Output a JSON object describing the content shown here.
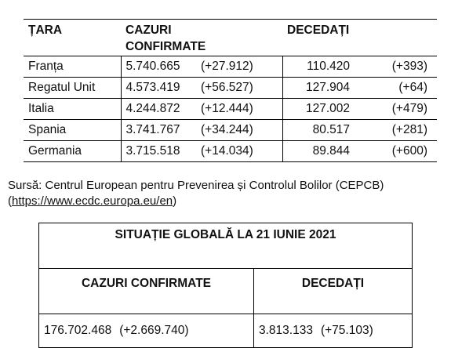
{
  "country_table": {
    "headers": {
      "country": "ȚARA",
      "confirmed_line1": "CAZURI",
      "confirmed_line2": "CONFIRMATE",
      "deaths": "DECEDAȚI"
    },
    "rows": [
      {
        "country": "Franța",
        "confirmed": "5.740.665",
        "confirmed_inc": "(+27.912)",
        "deaths": "110.420",
        "deaths_inc": "(+393)"
      },
      {
        "country": "Regatul Unit",
        "confirmed": "4.573.419",
        "confirmed_inc": "(+56.527)",
        "deaths": "127.904",
        "deaths_inc": "(+64)"
      },
      {
        "country": "Italia",
        "confirmed": "4.244.872",
        "confirmed_inc": "(+12.444)",
        "deaths": "127.002",
        "deaths_inc": "(+479)"
      },
      {
        "country": "Spania",
        "confirmed": "3.741.767",
        "confirmed_inc": "(+34.244)",
        "deaths": "80.517",
        "deaths_inc": "(+281)"
      },
      {
        "country": "Germania",
        "confirmed": "3.715.518",
        "confirmed_inc": "(+14.034)",
        "deaths": "89.844",
        "deaths_inc": "(+600)"
      }
    ]
  },
  "source": {
    "text": "Sursă: Centrul European pentru Prevenirea și Controlul Bolilor (CEPCB)",
    "url_open": "(",
    "url": "https://www.ecdc.europa.eu/en",
    "url_close": ")"
  },
  "global_table": {
    "title": "SITUAȚIE GLOBALĂ LA 21 IUNIE 2021",
    "confirmed_header": "CAZURI CONFIRMATE",
    "deaths_header": "DECEDAȚI",
    "confirmed": "176.702.468",
    "confirmed_inc": "(+2.669.740)",
    "deaths": "3.813.133",
    "deaths_inc": "(+75.103)"
  }
}
